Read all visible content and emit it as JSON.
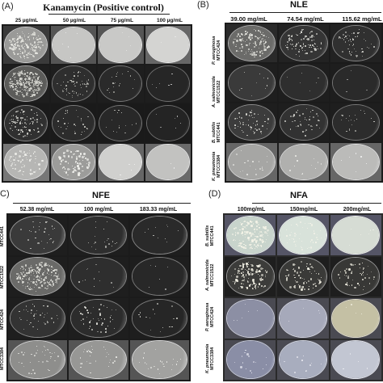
{
  "panels": {
    "a": {
      "letter": "(A)",
      "title": "Kanamycin (Positive control)",
      "concentrations": [
        "25 µg/mL",
        "50 µg/mL",
        "75 µg/mL",
        "100 µg/mL"
      ]
    },
    "b": {
      "letter": "(B)",
      "title": "NLE",
      "concentrations": [
        "39.00 mg/mL",
        "74.54 mg/mL",
        "115.62 mg/mL"
      ],
      "organisms": [
        {
          "species": "P. aeruginosa",
          "strain": "MTCC424"
        },
        {
          "species": "A. salmonicida",
          "strain": "MTCC1522"
        },
        {
          "species": "B. subtilis",
          "strain": "MTCC441"
        },
        {
          "species": "K. pneumonia",
          "strain": "MTCC3384"
        }
      ]
    },
    "c": {
      "letter": "C)",
      "title": "NFE",
      "concentrations": [
        "52.38 mg/mL",
        "100 mg/mL",
        "183.33 mg/mL"
      ],
      "left_labels": [
        "MTCC441",
        "MTCC1522",
        "MTCC424",
        "MTCC3384"
      ]
    },
    "d": {
      "letter": "(D)",
      "title": "NFA",
      "concentrations": [
        "100mg/mL",
        "150mg/mL",
        "200mg/mL"
      ],
      "organisms": [
        {
          "species": "B. subtilis",
          "strain": "MTCC441"
        },
        {
          "species": "A. salmonicida",
          "strain": "MTCC1522"
        },
        {
          "species": "P. aeruginosa",
          "strain": "MTCC424"
        },
        {
          "species": "K. pneumonia",
          "strain": "MTCC3384"
        }
      ]
    }
  }
}
